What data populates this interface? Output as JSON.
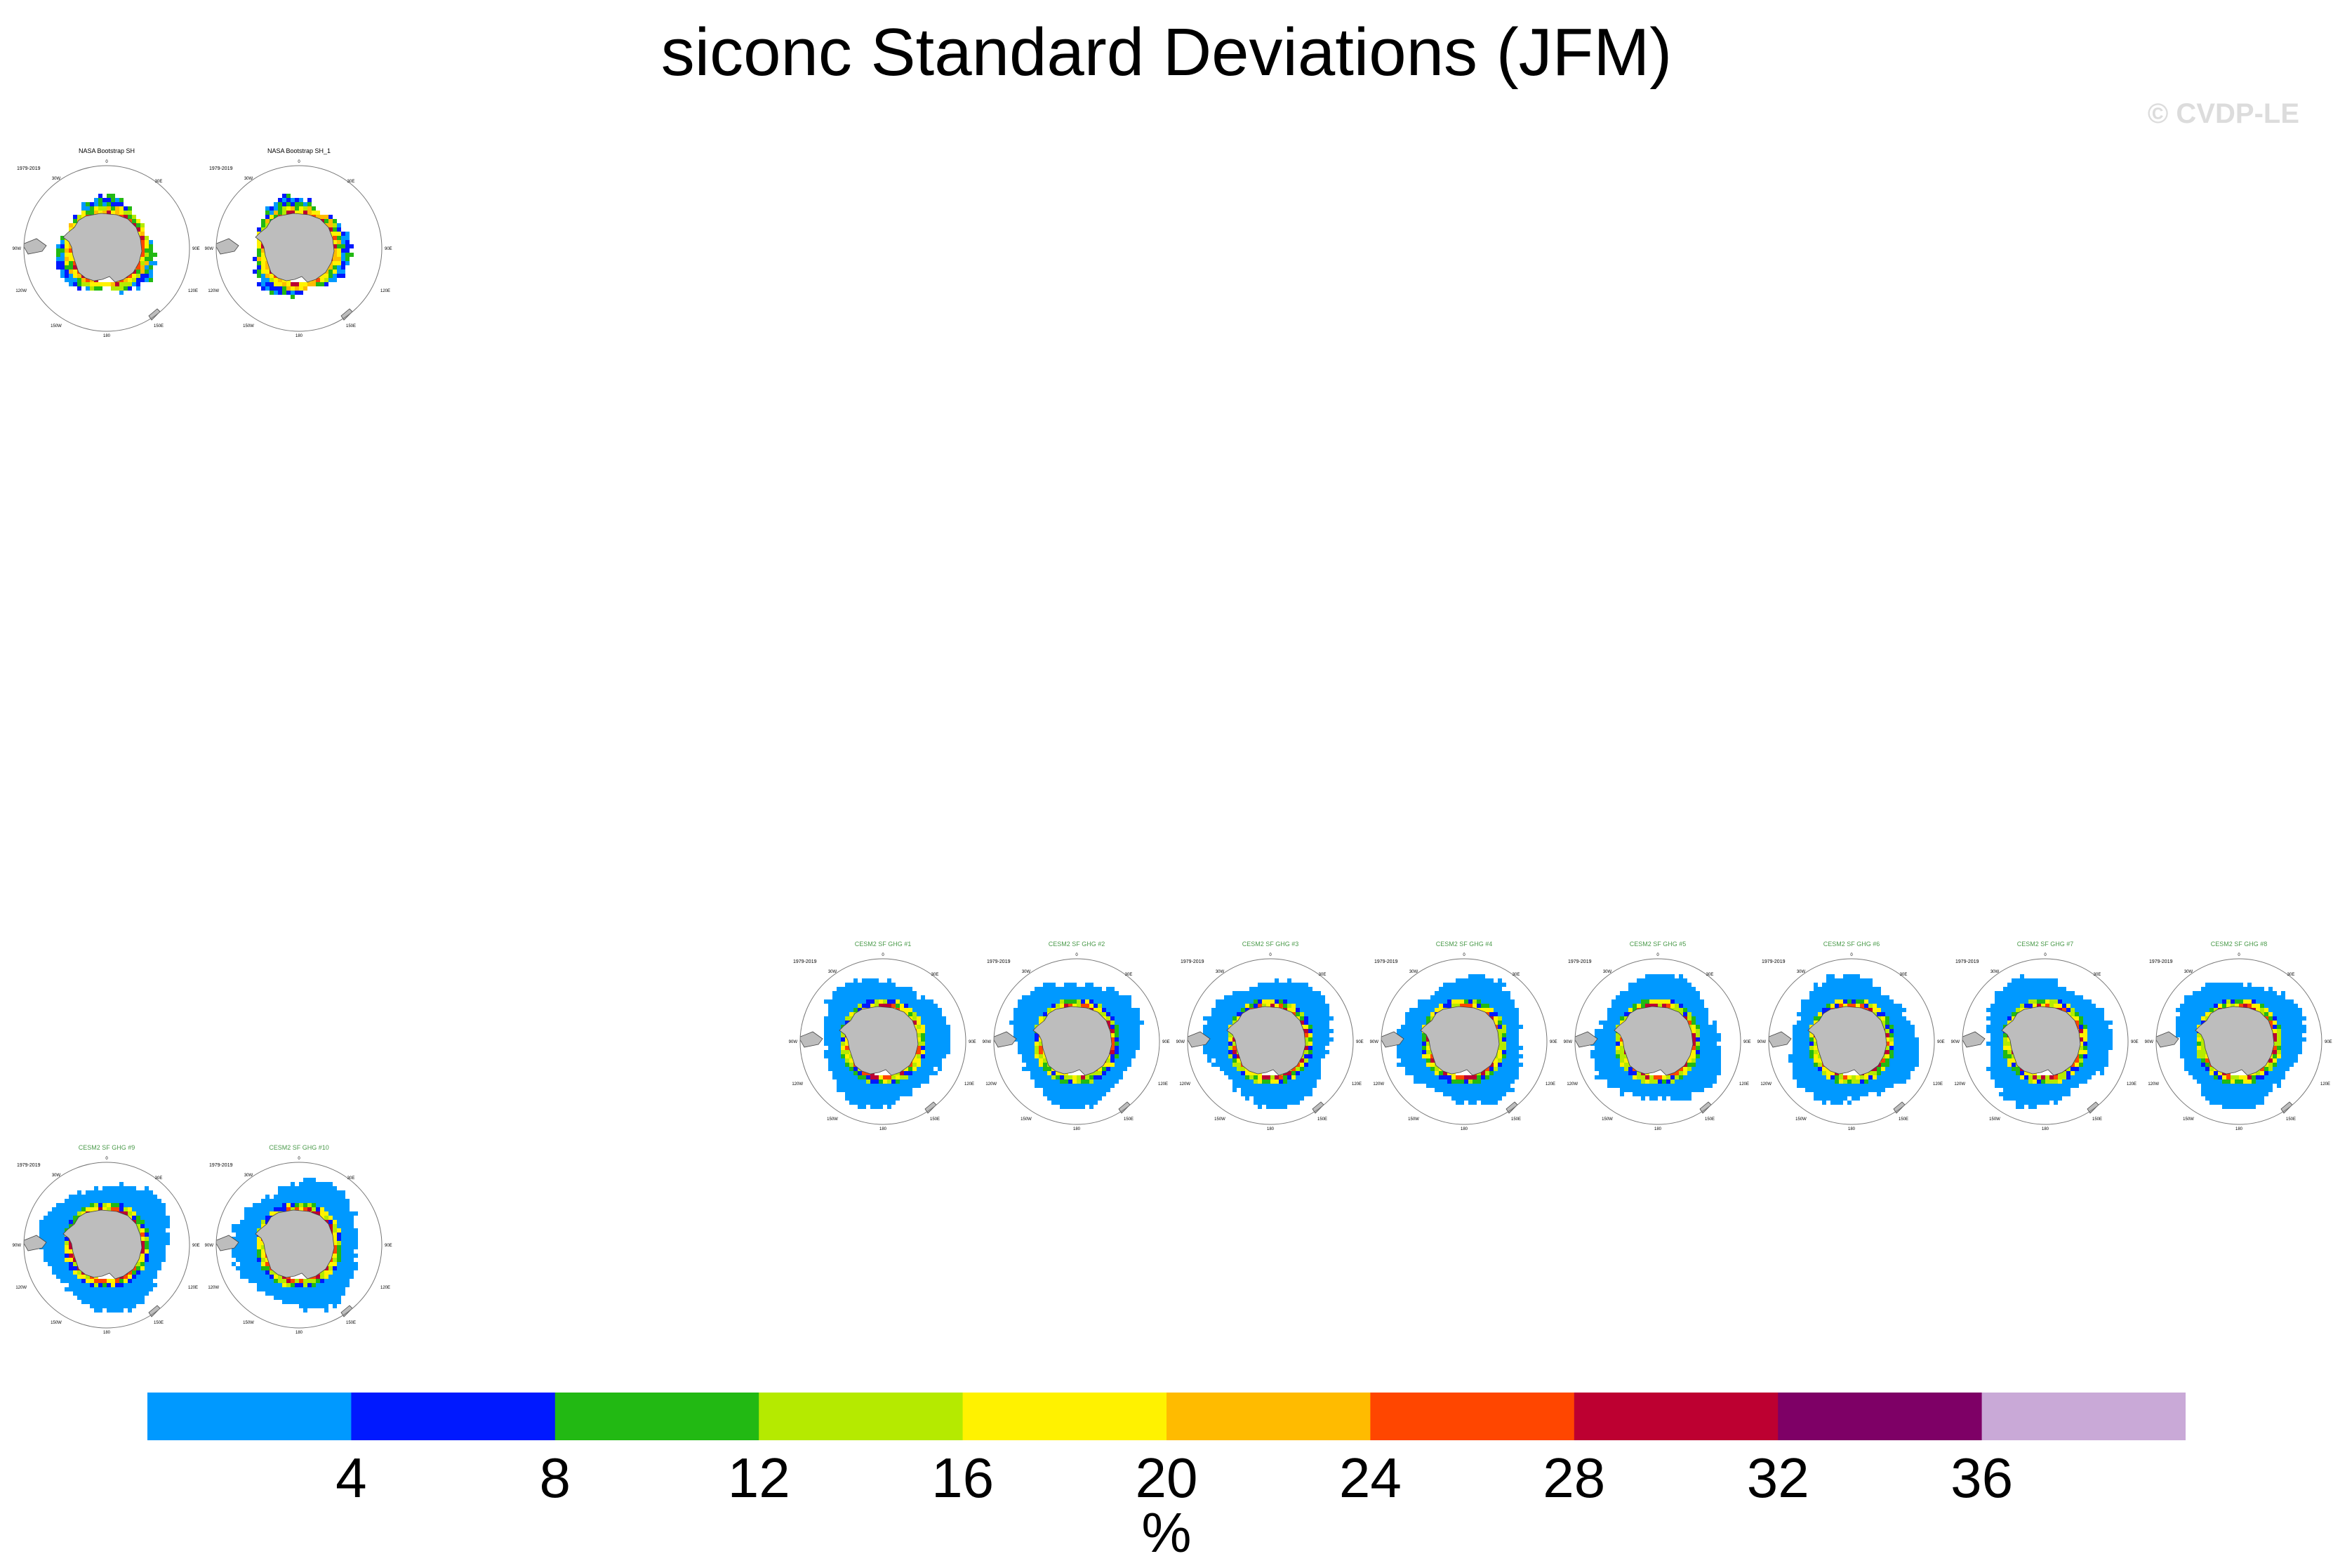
{
  "chart_data": {
    "type": "heatmap",
    "title": "siconc Standard Deviations (JFM)",
    "copyright": "© CVDP-LE",
    "units": "%",
    "colorbar": {
      "levels": [
        4,
        8,
        12,
        16,
        20,
        24,
        28,
        32,
        36
      ],
      "colors": [
        "#0099ff",
        "#0019ff",
        "#22b913",
        "#b5ea00",
        "#fff200",
        "#ffbb00",
        "#ff4600",
        "#bd0031",
        "#7e0066",
        "#c9a9d7"
      ]
    },
    "panels": [
      {
        "title": "NASA Bootstrap SH",
        "years": "1979-2019",
        "style": "obs"
      },
      {
        "title": "NASA Bootstrap SH_1",
        "years": "1979-2019",
        "style": "obs"
      },
      {
        "title": "CESM2 SF GHG #1",
        "years": "1979-2019",
        "style": "model"
      },
      {
        "title": "CESM2 SF GHG #2",
        "years": "1979-2019",
        "style": "model"
      },
      {
        "title": "CESM2 SF GHG #3",
        "years": "1979-2019",
        "style": "model"
      },
      {
        "title": "CESM2 SF GHG #4",
        "years": "1979-2019",
        "style": "model"
      },
      {
        "title": "CESM2 SF GHG #5",
        "years": "1979-2019",
        "style": "model"
      },
      {
        "title": "CESM2 SF GHG #6",
        "years": "1979-2019",
        "style": "model"
      },
      {
        "title": "CESM2 SF GHG #7",
        "years": "1979-2019",
        "style": "model"
      },
      {
        "title": "CESM2 SF GHG #8",
        "years": "1979-2019",
        "style": "model"
      },
      {
        "title": "CESM2 SF GHG #9",
        "years": "1979-2019",
        "style": "model"
      },
      {
        "title": "CESM2 SF GHG #10",
        "years": "1979-2019",
        "style": "model"
      }
    ],
    "map_labels": {
      "top": "0",
      "left": "90W",
      "right": "90E",
      "bottom": "180",
      "upper_left": "30W",
      "upper_right": "30E",
      "lower_left": "120W",
      "lower_right": "120E",
      "bottom_left": "150W",
      "bottom_right": "150E"
    }
  }
}
